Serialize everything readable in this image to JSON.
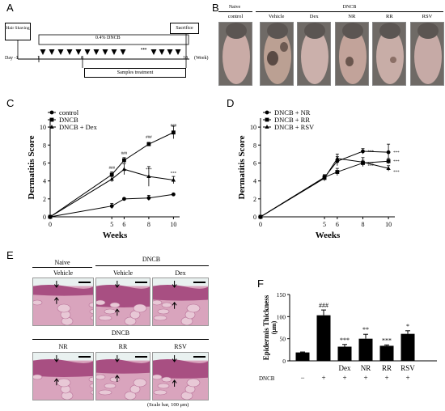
{
  "panels": {
    "A": "A",
    "B": "B",
    "C": "C",
    "D": "D",
    "E": "E",
    "F": "F"
  },
  "panelA": {
    "hair_shaving": "Hair Shaving",
    "dncb_bar": "0.4% DNCB",
    "sacrifice": "Sacrifice",
    "dots": "•••",
    "day_label": "Day -1",
    "tick1": "1",
    "tick6": "6",
    "tick10": "10",
    "week_unit": "(Week)",
    "samples": "Samples treatment"
  },
  "panelB": {
    "naive": "Naive",
    "dncb": "DNCB",
    "groups": [
      "control",
      "Vehicle",
      "Dex",
      "NR",
      "RR",
      "RSV"
    ]
  },
  "chartC": {
    "type": "line",
    "ylabel": "Dermatitis Score",
    "xlabel": "Weeks",
    "x": [
      0,
      5,
      6,
      8,
      10
    ],
    "xticks": [
      "0",
      "5",
      "6",
      "8",
      "10"
    ],
    "yticks": [
      "0",
      "2",
      "4",
      "6",
      "8",
      "10"
    ],
    "ylim": [
      0,
      11
    ],
    "series": [
      {
        "name": "control",
        "marker": "circle",
        "values": [
          0,
          1.2,
          2.0,
          2.1,
          2.5
        ],
        "err": [
          0,
          0.3,
          0.1,
          0.3,
          0.1
        ],
        "ann": [
          "",
          "",
          "",
          "",
          ""
        ]
      },
      {
        "name": "DNCB",
        "marker": "square",
        "values": [
          0,
          4.7,
          6.3,
          8.1,
          9.4
        ],
        "err": [
          0,
          0.3,
          0.3,
          0.2,
          0.7
        ],
        "ann": [
          "",
          "###",
          "###",
          "###",
          "###"
        ]
      },
      {
        "name": "DNCB + Dex",
        "marker": "triangle",
        "values": [
          0,
          4.2,
          5.3,
          4.5,
          4.1
        ],
        "err": [
          0,
          0.3,
          0.6,
          1.1,
          0.4
        ],
        "ann": [
          "",
          "",
          "",
          "***",
          "***"
        ]
      }
    ]
  },
  "chartD": {
    "type": "line",
    "ylabel": "Dermatitis Score",
    "xlabel": "Weeks",
    "x": [
      0,
      5,
      6,
      8,
      10
    ],
    "xticks": [
      "0",
      "5",
      "6",
      "8",
      "10"
    ],
    "yticks": [
      "0",
      "2",
      "4",
      "6",
      "8",
      "10"
    ],
    "ylim": [
      0,
      11
    ],
    "series": [
      {
        "name": "DNCB + NR",
        "marker": "circle",
        "values": [
          0,
          4.4,
          6.2,
          7.3,
          7.2
        ],
        "err": [
          0,
          0.3,
          0.5,
          0.3,
          0.9
        ],
        "ann": [
          "",
          "",
          "",
          "***",
          "***"
        ]
      },
      {
        "name": "DNCB + RR",
        "marker": "square",
        "values": [
          0,
          4.4,
          5.0,
          6.0,
          6.2
        ],
        "err": [
          0,
          0.3,
          0.4,
          0.3,
          0.3
        ],
        "ann": [
          "",
          "",
          "",
          "***",
          "***"
        ]
      },
      {
        "name": "DNCB + RSV",
        "marker": "triangle",
        "values": [
          0,
          4.3,
          6.5,
          6.1,
          5.4
        ],
        "err": [
          0,
          0.3,
          0.5,
          0.5,
          0.3
        ],
        "ann": [
          "",
          "",
          "",
          "***",
          "***"
        ]
      }
    ]
  },
  "panelE": {
    "naive": "Naive",
    "dncb": "DNCB",
    "row1": [
      "Vehicle",
      "Vehicle",
      "Dex"
    ],
    "dncb2": "DNCB",
    "row2": [
      "NR",
      "RR",
      "RSV"
    ],
    "scale_note": "(Scale bar, 100 μm)"
  },
  "chartF": {
    "type": "bar",
    "ylabel_top": "Epidermis Thickness",
    "ylabel_unit": "(μm)",
    "categories": [
      "",
      "",
      "Dex",
      "NR",
      "RR",
      "RSV"
    ],
    "dncb_label": "DNCB",
    "dncb_signs": [
      "−",
      "+",
      "+",
      "+",
      "+",
      "+"
    ],
    "values": [
      19,
      103,
      32,
      50,
      34,
      61
    ],
    "err": [
      1,
      12,
      5,
      10,
      2,
      7
    ],
    "ann": [
      "",
      "###",
      "***",
      "**",
      "***",
      "*"
    ],
    "yticks": [
      "0",
      "50",
      "100",
      "150"
    ],
    "ylim": [
      0,
      150
    ]
  },
  "colors": {
    "ink": "#000000",
    "skin": "#cdb2ab",
    "histo": "#c98aa6",
    "stain_dark": "#8a3f6b"
  }
}
